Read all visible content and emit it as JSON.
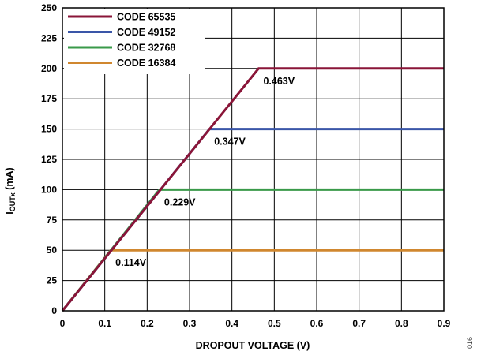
{
  "chart_data": {
    "type": "line",
    "xlabel": "DROPOUT VOLTAGE (V)",
    "ylabel_main": "I",
    "ylabel_sub": "OUTx",
    "ylabel_unit": " (mA)",
    "xlim": [
      0,
      0.9
    ],
    "ylim": [
      0,
      250
    ],
    "xticks": [
      "0",
      "0.1",
      "0.2",
      "0.3",
      "0.4",
      "0.5",
      "0.6",
      "0.7",
      "0.8",
      "0.9"
    ],
    "yticks": [
      "0",
      "25",
      "50",
      "75",
      "100",
      "125",
      "150",
      "175",
      "200",
      "225",
      "250"
    ],
    "grid": true,
    "legend_position": "top-left",
    "series": [
      {
        "name": "CODE 65535",
        "color": "#8a1538",
        "x": [
          0,
          0.463,
          0.9
        ],
        "y": [
          0,
          200,
          200
        ]
      },
      {
        "name": "CODE 49152",
        "color": "#3a56a8",
        "x": [
          0,
          0.347,
          0.9
        ],
        "y": [
          0,
          150,
          150
        ]
      },
      {
        "name": "CODE 32768",
        "color": "#3a9a4a",
        "x": [
          0,
          0.229,
          0.9
        ],
        "y": [
          0,
          100,
          100
        ]
      },
      {
        "name": "CODE 16384",
        "color": "#d0872f",
        "x": [
          0,
          0.114,
          0.9
        ],
        "y": [
          0,
          50,
          50
        ]
      }
    ],
    "annotations": [
      {
        "text": "0.463V",
        "x": 0.463,
        "y": 200
      },
      {
        "text": "0.347V",
        "x": 0.347,
        "y": 150
      },
      {
        "text": "0.229V",
        "x": 0.229,
        "y": 100
      },
      {
        "text": "0.114V",
        "x": 0.114,
        "y": 50
      }
    ]
  },
  "figure_id": "016"
}
